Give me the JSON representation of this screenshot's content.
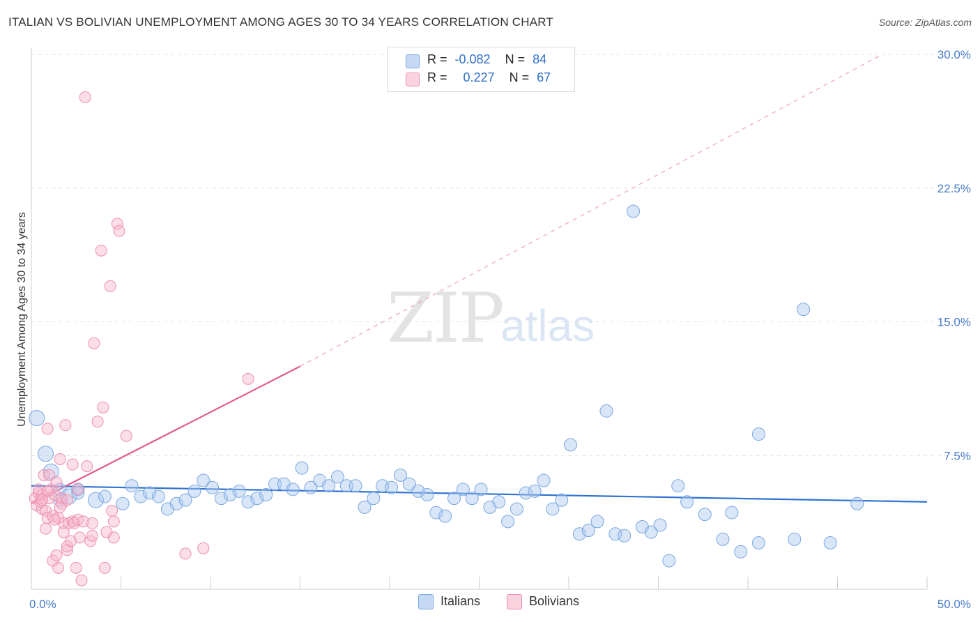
{
  "title": "ITALIAN VS BOLIVIAN UNEMPLOYMENT AMONG AGES 30 TO 34 YEARS CORRELATION CHART",
  "source": "Source: ZipAtlas.com",
  "watermark": {
    "zip": "ZIP",
    "atlas": "atlas"
  },
  "legend": {
    "rows": [
      {
        "r_label": "R =",
        "r": "-0.082",
        "n_label": "N =",
        "n": "84",
        "color": "#a9c8ef"
      },
      {
        "r_label": "R =",
        "r": "0.227",
        "n_label": "N =",
        "n": "67",
        "color": "#f7b6cb"
      }
    ]
  },
  "bottom_legend": {
    "italians": "Italians",
    "bolivians": "Bolivians"
  },
  "chart_data": {
    "type": "scatter",
    "title": "ITALIAN VS BOLIVIAN UNEMPLOYMENT AMONG AGES 30 TO 34 YEARS CORRELATION CHART",
    "xlabel": "",
    "ylabel": "Unemployment Among Ages 30 to 34 years",
    "xlim": [
      0,
      50
    ],
    "ylim": [
      0,
      30
    ],
    "x_tick_labels": [
      "0.0%",
      "50.0%"
    ],
    "y_tick_labels": [
      "30.0%",
      "22.5%",
      "15.0%",
      "7.5%"
    ],
    "y_ticks": [
      30,
      22.5,
      15,
      7.5
    ],
    "grid": true,
    "legend_position": "top-center",
    "series": [
      {
        "name": "Italians",
        "color": "#a9c8ef",
        "stroke": "#7aa6e0",
        "trend": {
          "x": [
            0,
            50
          ],
          "y": [
            5.8,
            4.9
          ],
          "color": "#2f72d0"
        },
        "points": [
          [
            0.3,
            9.6
          ],
          [
            0.8,
            7.6
          ],
          [
            1.1,
            6.6
          ],
          [
            1.6,
            5.6
          ],
          [
            2.1,
            5.2
          ],
          [
            2.6,
            5.6
          ],
          [
            3.6,
            5.0
          ],
          [
            4.1,
            5.2
          ],
          [
            5.1,
            4.8
          ],
          [
            5.6,
            5.8
          ],
          [
            6.1,
            5.2
          ],
          [
            6.6,
            5.4
          ],
          [
            7.1,
            5.2
          ],
          [
            7.6,
            4.5
          ],
          [
            8.1,
            4.8
          ],
          [
            8.6,
            5.0
          ],
          [
            9.1,
            5.5
          ],
          [
            9.6,
            6.1
          ],
          [
            10.1,
            5.7
          ],
          [
            10.6,
            5.1
          ],
          [
            11.1,
            5.3
          ],
          [
            11.6,
            5.5
          ],
          [
            12.1,
            4.9
          ],
          [
            12.6,
            5.1
          ],
          [
            13.1,
            5.3
          ],
          [
            13.6,
            5.9
          ],
          [
            14.1,
            5.9
          ],
          [
            14.6,
            5.6
          ],
          [
            15.1,
            6.8
          ],
          [
            15.6,
            5.7
          ],
          [
            16.1,
            6.1
          ],
          [
            16.6,
            5.8
          ],
          [
            17.1,
            6.3
          ],
          [
            17.6,
            5.8
          ],
          [
            18.1,
            5.8
          ],
          [
            18.6,
            4.6
          ],
          [
            19.1,
            5.1
          ],
          [
            19.6,
            5.8
          ],
          [
            20.1,
            5.7
          ],
          [
            20.6,
            6.4
          ],
          [
            21.1,
            5.9
          ],
          [
            21.6,
            5.5
          ],
          [
            22.1,
            5.3
          ],
          [
            22.6,
            4.3
          ],
          [
            23.1,
            4.1
          ],
          [
            23.6,
            5.1
          ],
          [
            24.1,
            5.6
          ],
          [
            24.6,
            5.1
          ],
          [
            25.1,
            5.6
          ],
          [
            25.6,
            4.6
          ],
          [
            26.1,
            4.9
          ],
          [
            26.6,
            3.8
          ],
          [
            27.1,
            4.5
          ],
          [
            27.6,
            5.4
          ],
          [
            28.1,
            5.5
          ],
          [
            28.6,
            6.1
          ],
          [
            29.1,
            4.5
          ],
          [
            29.6,
            5.0
          ],
          [
            30.1,
            8.1
          ],
          [
            30.6,
            3.1
          ],
          [
            31.1,
            3.3
          ],
          [
            31.6,
            3.8
          ],
          [
            32.1,
            10.0
          ],
          [
            32.6,
            3.1
          ],
          [
            33.1,
            3.0
          ],
          [
            33.6,
            21.2
          ],
          [
            34.1,
            3.5
          ],
          [
            34.6,
            3.2
          ],
          [
            35.1,
            3.6
          ],
          [
            35.6,
            1.6
          ],
          [
            36.1,
            5.8
          ],
          [
            36.6,
            4.9
          ],
          [
            37.6,
            4.2
          ],
          [
            38.6,
            2.8
          ],
          [
            39.1,
            4.3
          ],
          [
            39.6,
            2.1
          ],
          [
            40.6,
            8.7
          ],
          [
            40.6,
            2.6
          ],
          [
            42.6,
            2.8
          ],
          [
            43.1,
            15.7
          ],
          [
            44.6,
            2.6
          ],
          [
            46.1,
            4.8
          ],
          [
            1.6,
            5.0
          ],
          [
            2.6,
            5.4
          ]
        ]
      },
      {
        "name": "Bolivians",
        "color": "#f7b6cb",
        "stroke": "#ec8fae",
        "trend": {
          "x": [
            0,
            15
          ],
          "y": [
            4.8,
            12.5
          ],
          "dash_to": [
            47.5,
            30
          ],
          "color": "#e05a86"
        },
        "points": [
          [
            0.2,
            5.1
          ],
          [
            0.3,
            4.7
          ],
          [
            0.4,
            5.4
          ],
          [
            0.5,
            4.9
          ],
          [
            0.6,
            4.5
          ],
          [
            0.6,
            5.3
          ],
          [
            0.7,
            6.4
          ],
          [
            0.8,
            4.4
          ],
          [
            0.8,
            3.4
          ],
          [
            0.9,
            9.0
          ],
          [
            0.9,
            4.0
          ],
          [
            1.0,
            5.1
          ],
          [
            1.0,
            6.4
          ],
          [
            1.1,
            5.6
          ],
          [
            1.2,
            4.1
          ],
          [
            1.2,
            1.6
          ],
          [
            1.3,
            5.3
          ],
          [
            1.4,
            1.9
          ],
          [
            1.4,
            6.0
          ],
          [
            1.5,
            4.0
          ],
          [
            1.5,
            1.2
          ],
          [
            1.6,
            7.3
          ],
          [
            1.7,
            4.8
          ],
          [
            1.7,
            5.1
          ],
          [
            1.8,
            3.7
          ],
          [
            1.8,
            3.2
          ],
          [
            1.9,
            9.2
          ],
          [
            2.0,
            2.2
          ],
          [
            2.0,
            2.4
          ],
          [
            2.1,
            3.7
          ],
          [
            2.2,
            2.7
          ],
          [
            2.3,
            3.8
          ],
          [
            2.3,
            7.0
          ],
          [
            2.4,
            3.7
          ],
          [
            2.5,
            1.2
          ],
          [
            2.6,
            3.9
          ],
          [
            2.6,
            5.6
          ],
          [
            2.7,
            2.9
          ],
          [
            2.8,
            0.5
          ],
          [
            2.9,
            3.8
          ],
          [
            3.0,
            27.6
          ],
          [
            3.1,
            6.9
          ],
          [
            3.3,
            2.7
          ],
          [
            3.4,
            3.7
          ],
          [
            3.4,
            3.0
          ],
          [
            3.5,
            13.8
          ],
          [
            3.7,
            9.4
          ],
          [
            3.9,
            19.0
          ],
          [
            4.0,
            10.2
          ],
          [
            4.1,
            1.2
          ],
          [
            4.2,
            3.2
          ],
          [
            4.4,
            17.0
          ],
          [
            4.5,
            4.4
          ],
          [
            4.6,
            3.8
          ],
          [
            4.6,
            2.9
          ],
          [
            4.8,
            20.5
          ],
          [
            4.9,
            20.1
          ],
          [
            5.3,
            8.6
          ],
          [
            8.6,
            2.0
          ],
          [
            9.6,
            2.3
          ],
          [
            12.1,
            11.8
          ],
          [
            0.4,
            5.6
          ],
          [
            0.9,
            5.5
          ],
          [
            1.3,
            3.9
          ],
          [
            0.6,
            5.0
          ],
          [
            2.0,
            5.0
          ],
          [
            1.6,
            4.6
          ]
        ]
      }
    ]
  }
}
